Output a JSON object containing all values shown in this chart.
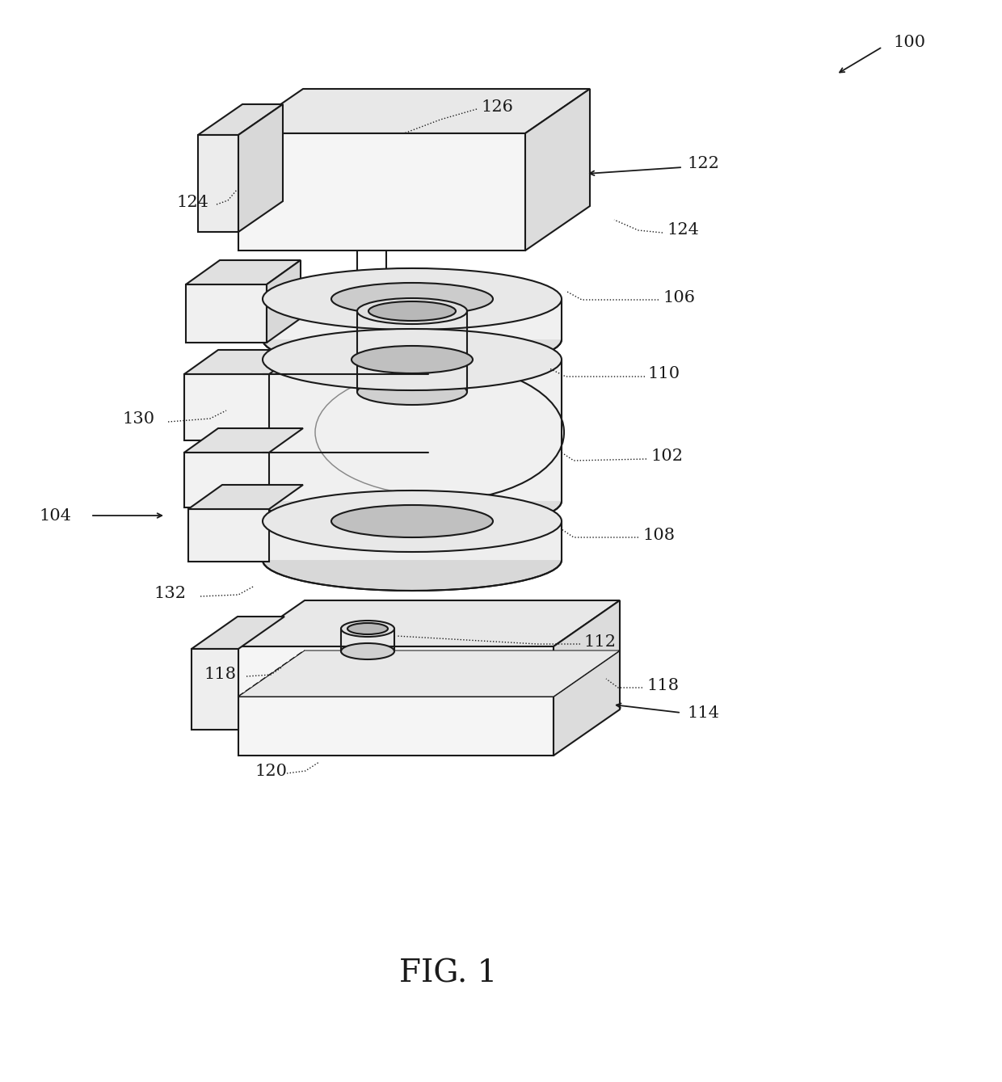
{
  "title": "FIG. 1",
  "title_fontsize": 28,
  "bg_color": "#ffffff",
  "line_color": "#1a1a1a",
  "line_width": 1.5,
  "fill_color": "#f0f0f0"
}
